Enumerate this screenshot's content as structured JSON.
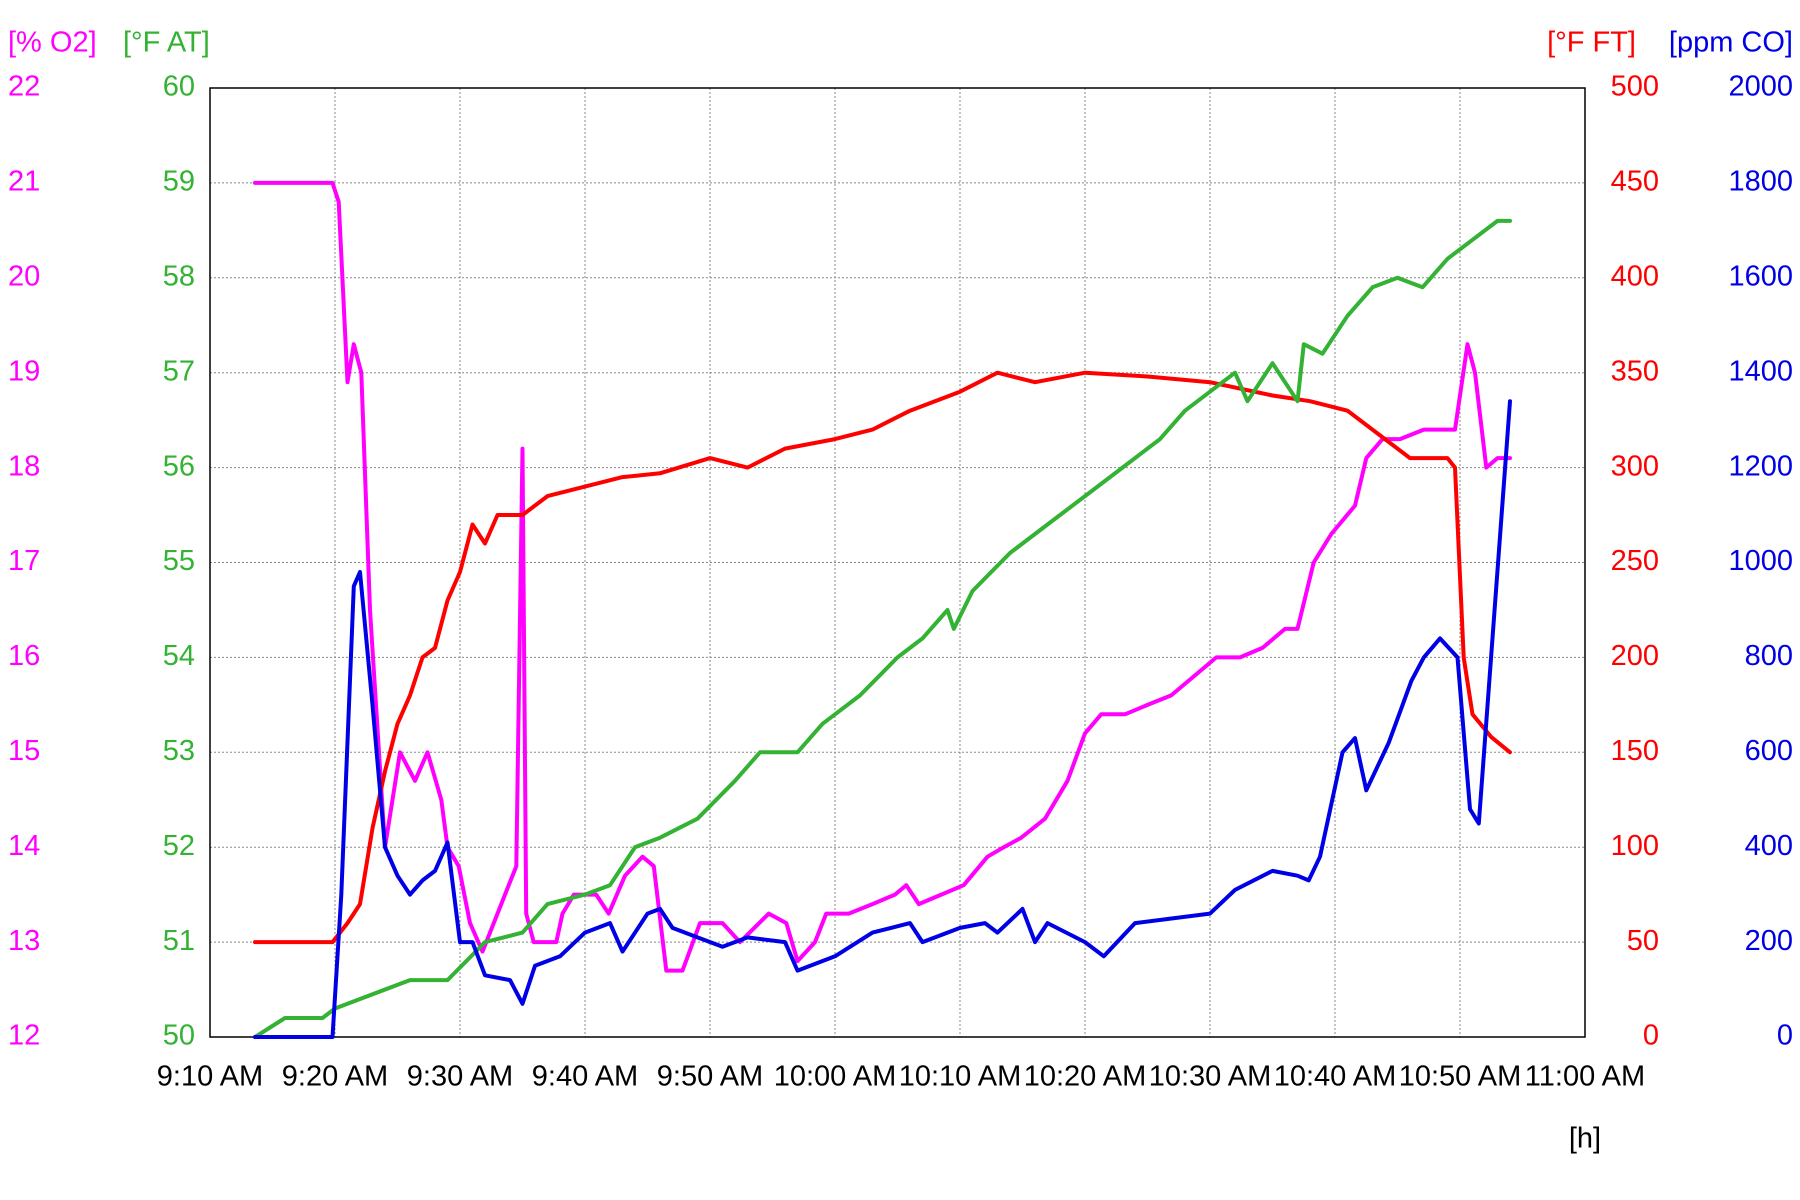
{
  "chart_data": {
    "type": "line",
    "xlabel": "[h]",
    "xlim": [
      550,
      660
    ],
    "xticks": [
      {
        "value": 550,
        "label": "9:10 AM"
      },
      {
        "value": 560,
        "label": "9:20 AM"
      },
      {
        "value": 570,
        "label": "9:30 AM"
      },
      {
        "value": 580,
        "label": "9:40 AM"
      },
      {
        "value": 590,
        "label": "9:50 AM"
      },
      {
        "value": 600,
        "label": "10:00 AM"
      },
      {
        "value": 610,
        "label": "10:10 AM"
      },
      {
        "value": 620,
        "label": "10:20 AM"
      },
      {
        "value": 630,
        "label": "10:30 AM"
      },
      {
        "value": 640,
        "label": "10:40 AM"
      },
      {
        "value": 650,
        "label": "10:50 AM"
      },
      {
        "value": 660,
        "label": "11:00 AM"
      }
    ],
    "grid": true,
    "ylabel": "[% O2]",
    "ylim": [
      12,
      22
    ],
    "yticks": [
      12,
      13,
      14,
      15,
      16,
      17,
      18,
      19,
      20,
      21,
      22
    ],
    "y2label": "[°F AT]",
    "y2lim": [
      50,
      60
    ],
    "y2ticks": [
      50,
      51,
      52,
      53,
      54,
      55,
      56,
      57,
      58,
      59,
      60
    ],
    "y3label": "[°F FT]",
    "y3lim": [
      0,
      500
    ],
    "y3ticks": [
      0,
      50,
      100,
      150,
      200,
      250,
      300,
      350,
      400,
      450,
      500
    ],
    "y4label": "[ppm CO]",
    "y4lim": [
      0,
      2000
    ],
    "y4ticks": [
      0,
      200,
      400,
      600,
      800,
      1000,
      1200,
      1400,
      1600,
      1800,
      2000
    ],
    "series": [
      {
        "color": "#ff00ff",
        "axis": "y",
        "x": [
          553.6,
          559.8,
          560.3,
          561.0,
          561.5,
          562.1,
          562.8,
          564.0,
          565.2,
          566.4,
          567.4,
          568.5,
          569.0,
          569.9,
          570.8,
          571.8,
          573.6,
          574.5,
          575.0,
          575.3,
          575.9,
          577.7,
          578.2,
          579.1,
          580.9,
          581.9,
          583.2,
          584.6,
          585.5,
          586.5,
          587.8,
          589.2,
          591.0,
          592.4,
          594.7,
          596.1,
          597.0,
          598.4,
          599.3,
          601.1,
          603.0,
          604.8,
          605.7,
          606.7,
          608.5,
          610.3,
          612.2,
          613.5,
          614.9,
          616.8,
          618.6,
          620.0,
          621.3,
          623.2,
          625.0,
          626.9,
          628.7,
          630.5,
          632.4,
          634.2,
          636.0,
          637.0,
          638.3,
          639.7,
          641.6,
          642.5,
          643.8,
          645.2,
          647.1,
          649.6,
          650.6,
          651.2,
          652.1,
          653.0,
          654.0
        ],
        "values": [
          21,
          21,
          20.8,
          18.9,
          19.3,
          19.0,
          16.5,
          14.0,
          15.0,
          14.7,
          15.0,
          14.5,
          14.0,
          13.8,
          13.2,
          12.9,
          13.5,
          13.8,
          18.2,
          13.3,
          13.0,
          13.0,
          13.3,
          13.5,
          13.5,
          13.3,
          13.7,
          13.9,
          13.8,
          12.7,
          12.7,
          13.2,
          13.2,
          13.0,
          13.3,
          13.2,
          12.8,
          13.0,
          13.3,
          13.3,
          13.4,
          13.5,
          13.6,
          13.4,
          13.5,
          13.6,
          13.9,
          14.0,
          14.1,
          14.3,
          14.7,
          15.2,
          15.4,
          15.4,
          15.5,
          15.6,
          15.8,
          16.0,
          16.0,
          16.1,
          16.3,
          16.3,
          17.0,
          17.3,
          17.6,
          18.1,
          18.3,
          18.3,
          18.4,
          18.4,
          19.3,
          19.0,
          18.0,
          18.1,
          18.1
        ]
      },
      {
        "color": "#ff0000",
        "axis": "y3",
        "x": [
          553.6,
          559.8,
          561,
          562,
          563,
          564,
          565,
          566,
          567,
          568,
          569,
          570,
          571,
          572,
          573,
          575,
          577,
          580,
          583,
          586,
          590,
          593,
          596,
          600,
          603,
          606,
          610,
          613,
          616,
          620,
          625,
          630,
          635,
          638,
          641,
          644,
          646,
          649,
          649.6,
          650.3,
          651,
          652.5,
          654
        ],
        "values": [
          50,
          50,
          60,
          70,
          110,
          140,
          165,
          180,
          200,
          205,
          230,
          245,
          270,
          260,
          275,
          275,
          285,
          290,
          295,
          297,
          305,
          300,
          310,
          315,
          320,
          330,
          340,
          350,
          345,
          350,
          348,
          345,
          338,
          335,
          330,
          315,
          305,
          305,
          300,
          200,
          170,
          158,
          150
        ]
      },
      {
        "color": "#33b233",
        "axis": "y2",
        "x": [
          553.6,
          556,
          559,
          560,
          562,
          566,
          569,
          570.5,
          572,
          575,
          577,
          580,
          582,
          584,
          586,
          589,
          592,
          594,
          597,
          599,
          602,
          605,
          607,
          609,
          609.5,
          611,
          614,
          617,
          620,
          623,
          626,
          628,
          630,
          632,
          633,
          635,
          637,
          637.5,
          639,
          641,
          643,
          645,
          647,
          649,
          651,
          653,
          654
        ],
        "values": [
          50.0,
          50.2,
          50.2,
          50.3,
          50.4,
          50.6,
          50.6,
          50.8,
          51.0,
          51.1,
          51.4,
          51.5,
          51.6,
          52.0,
          52.1,
          52.3,
          52.7,
          53.0,
          53.0,
          53.3,
          53.6,
          54.0,
          54.2,
          54.5,
          54.3,
          54.7,
          55.1,
          55.4,
          55.7,
          56.0,
          56.3,
          56.6,
          56.8,
          57.0,
          56.7,
          57.1,
          56.7,
          57.3,
          57.2,
          57.6,
          57.9,
          58.0,
          57.9,
          58.2,
          58.4,
          58.6,
          58.6
        ]
      },
      {
        "color": "#0000e6",
        "axis": "y4",
        "x": [
          553.6,
          559.8,
          560.5,
          561.5,
          562,
          563,
          564,
          565,
          566,
          567,
          568,
          569,
          570,
          571,
          572,
          574,
          575,
          576,
          578,
          580,
          582,
          583,
          585,
          586,
          587,
          589,
          591,
          593,
          596,
          597,
          600,
          603,
          606,
          607,
          610,
          612,
          613,
          615,
          616,
          617,
          620,
          621.5,
          624,
          627,
          630,
          632,
          635,
          637,
          637.9,
          638.8,
          640.6,
          641.6,
          642.5,
          644.3,
          646.1,
          647.1,
          648.4,
          649.8,
          650.8,
          651.5,
          654
        ],
        "values": [
          0,
          0,
          300,
          950,
          980,
          700,
          400,
          340,
          300,
          330,
          350,
          410,
          200,
          200,
          130,
          120,
          70,
          150,
          170,
          220,
          240,
          180,
          260,
          270,
          230,
          210,
          190,
          210,
          200,
          140,
          170,
          220,
          240,
          200,
          230,
          240,
          220,
          270,
          200,
          240,
          200,
          170,
          240,
          250,
          260,
          310,
          350,
          340,
          330,
          380,
          600,
          630,
          520,
          620,
          750,
          800,
          840,
          800,
          480,
          450,
          1340
        ]
      }
    ]
  }
}
